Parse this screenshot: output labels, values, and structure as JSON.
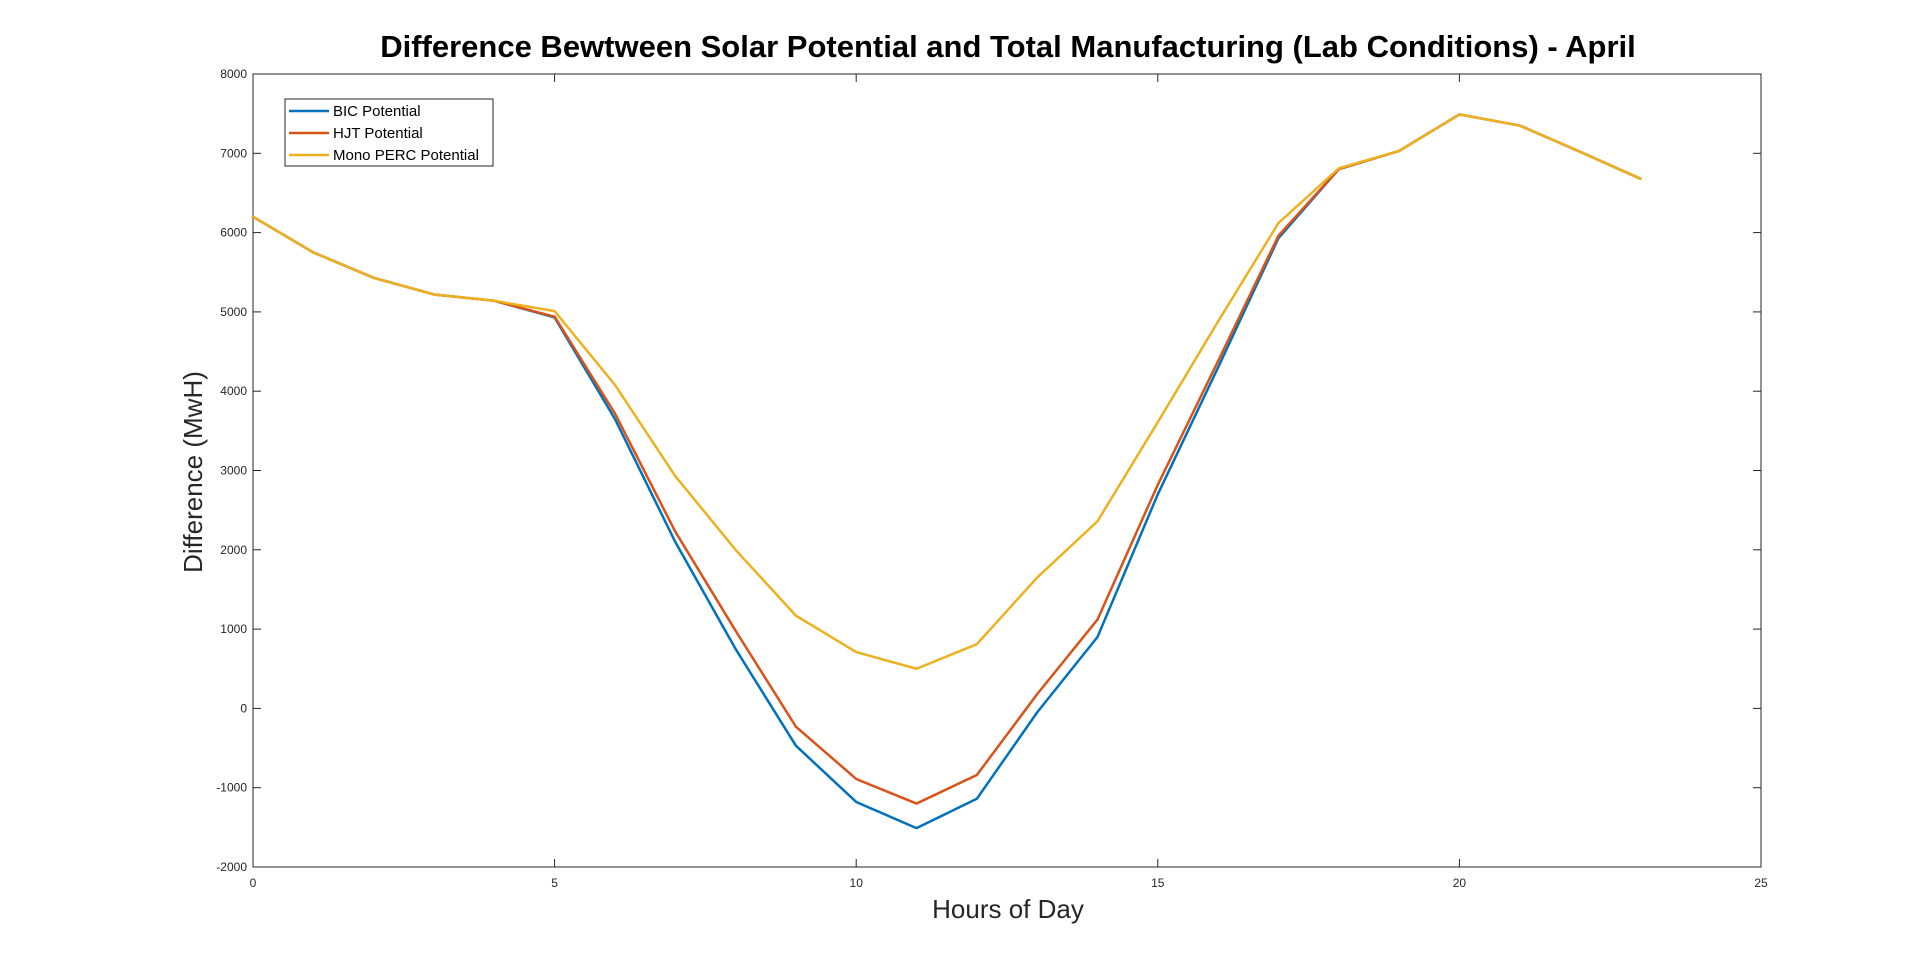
{
  "chart_data": {
    "type": "line",
    "title": "Difference Bewtween Solar Potential and Total Manufacturing (Lab Conditions) - April",
    "xlabel": "Hours of Day",
    "ylabel": "Difference (MwH)",
    "xlim": [
      0,
      25
    ],
    "ylim": [
      -2000,
      8000
    ],
    "xticks": [
      0,
      5,
      10,
      15,
      20,
      25
    ],
    "yticks": [
      -2000,
      -1000,
      0,
      1000,
      2000,
      3000,
      4000,
      5000,
      6000,
      7000,
      8000
    ],
    "grid": false,
    "legend_position": "top-left",
    "x": [
      0,
      1,
      2,
      3,
      4,
      5,
      6,
      7,
      8,
      9,
      10,
      11,
      12,
      13,
      14,
      15,
      16,
      17,
      18,
      19,
      20,
      21,
      22,
      23
    ],
    "series": [
      {
        "name": "BIC Potential",
        "color": "#0072BD",
        "values": [
          6200,
          5750,
          5430,
          5220,
          5140,
          4930,
          3650,
          2100,
          750,
          -470,
          -1180,
          -1510,
          -1140,
          -50,
          900,
          2700,
          4300,
          5930,
          6800,
          7030,
          7490,
          7350,
          7020,
          6680
        ]
      },
      {
        "name": "HJT Potential",
        "color": "#D95319",
        "values": [
          6200,
          5750,
          5430,
          5220,
          5140,
          4940,
          3720,
          2230,
          980,
          -230,
          -890,
          -1200,
          -840,
          180,
          1120,
          2820,
          4380,
          5960,
          6800,
          7030,
          7490,
          7350,
          7020,
          6680
        ]
      },
      {
        "name": "Mono PERC Potential",
        "color": "#EDB120",
        "values": [
          6200,
          5750,
          5430,
          5220,
          5140,
          5010,
          4080,
          2930,
          2000,
          1170,
          710,
          500,
          810,
          1650,
          2360,
          3610,
          4880,
          6120,
          6810,
          7030,
          7490,
          7350,
          7020,
          6680
        ]
      }
    ]
  }
}
